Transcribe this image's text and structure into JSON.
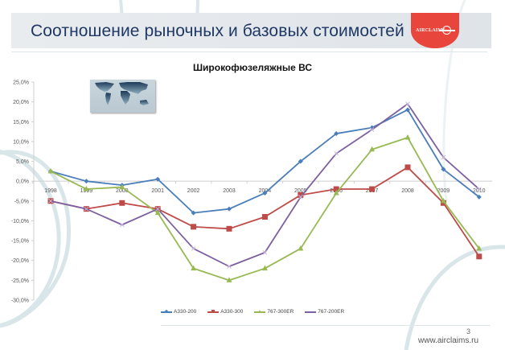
{
  "header": {
    "title": "Соотношение рыночных и базовых стоимостей",
    "logo_text": "AIRCLAIMS",
    "accent_color": "#e8453c",
    "title_color": "#1f3864"
  },
  "chart_data": {
    "type": "line",
    "title": "Широкофюзеляжные ВС",
    "xlabel": "",
    "ylabel": "",
    "ylim": [
      -30,
      25
    ],
    "yticks": [
      "25,0%",
      "20,0%",
      "15,0%",
      "10,0%",
      "5,0%",
      "0,0%",
      "-5,0%",
      "-10,0%",
      "-15,0%",
      "-20,0%",
      "-25,0%",
      "-30,0%"
    ],
    "categories": [
      "1998",
      "1999",
      "2000",
      "2001",
      "2002",
      "2003",
      "2004",
      "2005",
      "2006",
      "2007",
      "2008",
      "2009",
      "2010"
    ],
    "grid": false,
    "legend_position": "bottom",
    "series": [
      {
        "name": "A330-200",
        "color": "#4a7ebb",
        "marker": "diamond",
        "values": [
          2.5,
          0,
          -1,
          0.5,
          -8,
          -7,
          -3,
          5,
          12,
          13.5,
          18,
          3,
          -4
        ]
      },
      {
        "name": "A330-300",
        "color": "#be4b48",
        "marker": "square",
        "values": [
          -5,
          -7,
          -5.5,
          -7,
          -11.5,
          -12,
          -9,
          -3.5,
          -2,
          -2,
          3.5,
          -5.5,
          -19
        ]
      },
      {
        "name": "767-300ER",
        "color": "#98b954",
        "marker": "triangle",
        "values": [
          2.5,
          -2,
          -1.5,
          -8,
          -22,
          -25,
          -22,
          -17,
          -3,
          8,
          11,
          -5,
          -17
        ]
      },
      {
        "name": "767-200ER",
        "color": "#7d60a0",
        "marker": "x",
        "values": [
          -5,
          -7,
          -11,
          -7,
          -17,
          -21.5,
          -18,
          -4,
          7,
          13,
          19.5,
          6,
          -2
        ]
      }
    ]
  },
  "footer": {
    "page_number": "3",
    "url": "www.airclaims.ru"
  }
}
